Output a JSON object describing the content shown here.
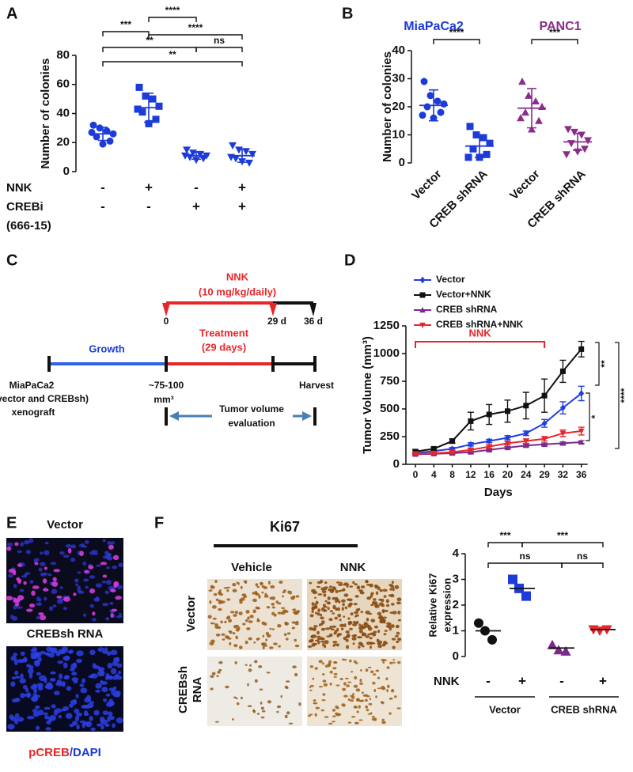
{
  "chart_data": [
    {
      "type": "dot",
      "panel_label": "A",
      "ylabel": "Number of colonies",
      "ylim": [
        0,
        80
      ],
      "yticks": [
        0,
        20,
        40,
        60,
        80
      ],
      "groups": [
        {
          "marker": "circle",
          "color": "#1c3bd8",
          "values": [
            32,
            30,
            28,
            26,
            24,
            21,
            19,
            27
          ],
          "mean": 26,
          "sd": 4.5
        },
        {
          "marker": "square",
          "color": "#1c3bd8",
          "values": [
            58,
            52,
            50,
            45,
            41,
            36,
            33,
            43
          ],
          "mean": 44,
          "sd": 10
        },
        {
          "marker": "triangle-down",
          "color": "#1c3bd8",
          "values": [
            15,
            13,
            12,
            11,
            10,
            9,
            8,
            11
          ],
          "mean": 11,
          "sd": 2.5
        },
        {
          "marker": "triangle-down",
          "color": "#1c3bd8",
          "values": [
            18,
            15,
            14,
            12,
            9,
            6,
            7,
            10
          ],
          "mean": 11,
          "sd": 4.5
        }
      ],
      "significance": [
        "***",
        "****",
        "****",
        "**",
        "ns",
        "**"
      ],
      "conditions": [
        {
          "label": "NNK",
          "values": [
            "-",
            "+",
            "-",
            "+"
          ]
        },
        {
          "label": "CREBi",
          "sublabel": "(666-15)",
          "values": [
            "-",
            "-",
            "+",
            "+"
          ]
        }
      ]
    },
    {
      "type": "dot",
      "panel_label": "B",
      "ylabel": "Number of colonies",
      "ylim": [
        0,
        40
      ],
      "yticks": [
        0,
        10,
        20,
        30,
        40
      ],
      "titles": [
        {
          "text": "MiaPaCa2",
          "color": "#1c3bd8"
        },
        {
          "text": "PANC1",
          "color": "#8b2c8c"
        }
      ],
      "categories": [
        "Vector",
        "CREB shRNA",
        "Vector",
        "CREB shRNA"
      ],
      "groups": [
        {
          "marker": "circle",
          "color": "#1c3bd8",
          "values": [
            29,
            24,
            22,
            21,
            20,
            18,
            16,
            17
          ],
          "mean": 20.5,
          "sd": 5.5
        },
        {
          "marker": "square",
          "color": "#1c3bd8",
          "values": [
            13,
            10,
            9,
            7,
            5,
            3,
            2,
            2
          ],
          "mean": 6,
          "sd": 4
        },
        {
          "marker": "triangle-up",
          "color": "#8b2c8c",
          "values": [
            29,
            24,
            22,
            20,
            18,
            15,
            12,
            16
          ],
          "mean": 19.5,
          "sd": 7
        },
        {
          "marker": "triangle-down",
          "color": "#8b2c8c",
          "values": [
            12,
            11,
            10,
            8,
            7,
            5,
            4,
            3
          ],
          "mean": 7.5,
          "sd": 3
        }
      ],
      "significance": [
        "****",
        "***"
      ]
    },
    {
      "type": "line",
      "panel_label": "D",
      "xlabel": "Days",
      "ylabel": "Tumor Volume (mm³)",
      "categories": [
        "0",
        "4",
        "8",
        "12",
        "16",
        "20",
        "24",
        "29",
        "32",
        "36"
      ],
      "ylim": [
        0,
        1250
      ],
      "yticks": [
        0,
        250,
        500,
        750,
        1000,
        1250
      ],
      "legend": "upper left",
      "series": [
        {
          "name": "Vector",
          "color": "#1f3fe0",
          "marker": "diamond",
          "values": [
            100,
            120,
            140,
            180,
            210,
            240,
            280,
            370,
            510,
            640
          ],
          "errors": [
            10,
            10,
            12,
            15,
            15,
            18,
            20,
            35,
            55,
            65
          ]
        },
        {
          "name": "Vector+NNK",
          "color": "#111111",
          "marker": "square",
          "values": [
            115,
            140,
            210,
            390,
            450,
            480,
            530,
            620,
            840,
            1040
          ],
          "errors": [
            15,
            15,
            20,
            80,
            90,
            100,
            120,
            150,
            100,
            70
          ]
        },
        {
          "name": "CREB shRNA",
          "color": "#7b2a8c",
          "marker": "triangle-up",
          "values": [
            90,
            95,
            100,
            110,
            130,
            150,
            170,
            180,
            190,
            200
          ],
          "errors": [
            8,
            8,
            8,
            10,
            10,
            10,
            12,
            12,
            12,
            12
          ]
        },
        {
          "name": "CREB shRNA+NNK",
          "color": "#e8262a",
          "marker": "triangle-down",
          "values": [
            95,
            100,
            110,
            130,
            160,
            190,
            210,
            230,
            280,
            300
          ],
          "errors": [
            8,
            8,
            10,
            12,
            15,
            15,
            20,
            20,
            30,
            35
          ]
        }
      ],
      "treatment": {
        "label": "NNK",
        "color": "#e8262a"
      },
      "significance": [
        "**",
        "*",
        "****"
      ]
    },
    {
      "type": "dot",
      "ylabel_lines": [
        "Relative Ki67",
        "expression"
      ],
      "ylim": [
        0,
        4
      ],
      "yticks": [
        0,
        1,
        2,
        3,
        4
      ],
      "groups": [
        {
          "marker": "circle",
          "color": "#111111",
          "values": [
            1.3,
            1.0,
            0.65
          ],
          "mean": 1.0
        },
        {
          "marker": "square",
          "color": "#1c3bd8",
          "values": [
            3.0,
            2.65,
            2.35
          ],
          "mean": 2.65
        },
        {
          "marker": "triangle-up",
          "color": "#7b2a8c",
          "values": [
            0.45,
            0.25,
            0.2
          ],
          "mean": 0.33
        },
        {
          "marker": "triangle-down",
          "color": "#e8262a",
          "values": [
            1.05,
            1.0,
            1.05
          ],
          "mean": 1.05
        }
      ],
      "significance": [
        "***",
        "***",
        "ns",
        "ns"
      ],
      "conditions": [
        {
          "label": "NNK",
          "values": [
            "-",
            "+",
            "-",
            "+"
          ]
        }
      ],
      "group_labels": [
        "Vector",
        "CREB shRNA"
      ]
    }
  ],
  "panel_c": {
    "label": "C",
    "nnk": "NNK",
    "dose": "(10 mg/kg/daily)",
    "day0": "0",
    "treatment": "Treatment",
    "treatment_days": "(29 days)",
    "day29": "29 d",
    "day36": "36 d",
    "growth": "Growth",
    "model": [
      "MiaPaCa2",
      "(vector and CREBsh)",
      "xenograft"
    ],
    "start_volume": [
      "~75-100",
      "mm³"
    ],
    "harvest": "Harvest",
    "evaluation": [
      "Tumor volume",
      "evaluation"
    ]
  },
  "panel_e": {
    "label": "E",
    "top": "Vector",
    "bottom": "CREBsh RNA",
    "stain": [
      "pCREB",
      "/DAPI"
    ]
  },
  "panel_f_images": {
    "label": "F",
    "title": "Ki67",
    "columns": [
      "Vehicle",
      "NNK"
    ],
    "rows": [
      [
        "Vector"
      ],
      [
        "CREBsh",
        "RNA"
      ]
    ]
  }
}
